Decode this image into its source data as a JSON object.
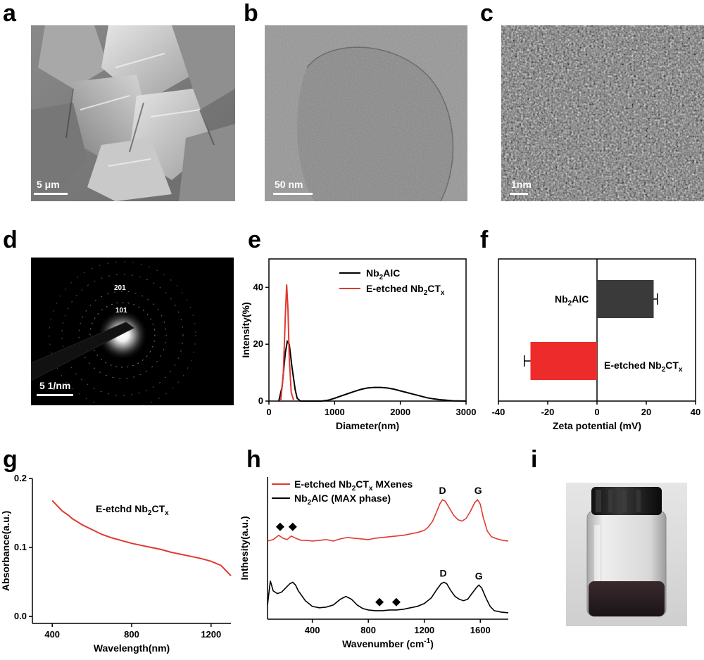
{
  "panels": {
    "a": {
      "letter": "a",
      "scale": "5 μm"
    },
    "b": {
      "letter": "b",
      "scale": "50 nm"
    },
    "c": {
      "letter": "c",
      "scale": "1nm"
    },
    "d": {
      "letter": "d",
      "scale": "5 1/nm",
      "rings": [
        "201",
        "101"
      ]
    },
    "e": {
      "letter": "e"
    },
    "f": {
      "letter": "f"
    },
    "g": {
      "letter": "g"
    },
    "h": {
      "letter": "h"
    },
    "i": {
      "letter": "i"
    }
  },
  "colors": {
    "black": "#000000",
    "red": "#e03a30",
    "bar_black": "#3a3a3a",
    "bar_red": "#ee2b2b"
  },
  "chart_data": [
    {
      "id": "e",
      "type": "line",
      "title": "",
      "xlabel": "Diameter(nm)",
      "ylabel": "Intensity(%)",
      "xlim": [
        0,
        3000
      ],
      "ylim": [
        0,
        50
      ],
      "xticks": [
        0,
        1000,
        2000,
        3000
      ],
      "yticks": [
        0,
        20,
        40
      ],
      "legend": "top-right",
      "series": [
        {
          "name_parts": [
            "Nb",
            "2",
            "AlC"
          ],
          "color": "#000000",
          "x": [
            150,
            200,
            250,
            280,
            310,
            350,
            400,
            430,
            480,
            800,
            900,
            1000,
            1100,
            1200,
            1300,
            1400,
            1500,
            1600,
            1700,
            1800,
            1900,
            2000,
            2100,
            2200,
            2300,
            2400,
            2500,
            2600,
            2700,
            2800,
            3000
          ],
          "y": [
            0,
            5,
            17,
            21,
            20,
            12,
            4,
            1,
            0,
            0,
            0.3,
            1,
            1.8,
            2.6,
            3.4,
            4.1,
            4.6,
            4.8,
            4.8,
            4.6,
            4.2,
            3.6,
            3.0,
            2.4,
            1.8,
            1.2,
            0.8,
            0.5,
            0.3,
            0.1,
            0
          ]
        },
        {
          "name_parts": [
            "E-etched Nb",
            "2",
            "CT",
            "x"
          ],
          "color": "#e03a30",
          "x": [
            180,
            220,
            250,
            270,
            290,
            310,
            340,
            380
          ],
          "y": [
            0,
            10,
            30,
            41,
            32,
            15,
            3,
            0
          ]
        }
      ]
    },
    {
      "id": "f",
      "type": "bar",
      "title": "",
      "xlabel": "Zeta potential (mV)",
      "ylabel": "",
      "xlim": [
        -40,
        40
      ],
      "xticks": [
        -40,
        -20,
        0,
        20,
        40
      ],
      "orientation": "horizontal",
      "categories": [
        [
          "Nb",
          "2",
          "AlC"
        ],
        [
          "E-etched Nb",
          "2",
          "CT",
          "x"
        ]
      ],
      "values": [
        23,
        -27
      ],
      "errors": [
        1.5,
        2.5
      ],
      "bar_colors": [
        "#3a3a3a",
        "#ee2b2b"
      ]
    },
    {
      "id": "g",
      "type": "line",
      "title": "",
      "xlabel": "Wavelength(nm)",
      "ylabel": "Absorbance(a.u.)",
      "xlim": [
        300,
        1300
      ],
      "ylim": [
        -0.01,
        0.2
      ],
      "xticks": [
        400,
        800,
        1200
      ],
      "yticks": [
        0.0,
        0.1,
        0.2
      ],
      "ytick_labels": [
        "0.0",
        "0.1",
        "0.2"
      ],
      "annotation_parts": [
        "E-etchd Nb",
        "2",
        "CT",
        "x"
      ],
      "series": [
        {
          "name": "",
          "color": "#e03a30",
          "x": [
            400,
            450,
            480,
            500,
            550,
            600,
            650,
            700,
            750,
            800,
            850,
            900,
            950,
            1000,
            1050,
            1100,
            1150,
            1200,
            1250,
            1300
          ],
          "y": [
            0.168,
            0.153,
            0.147,
            0.142,
            0.133,
            0.126,
            0.119,
            0.114,
            0.11,
            0.106,
            0.103,
            0.1,
            0.097,
            0.093,
            0.09,
            0.087,
            0.084,
            0.08,
            0.074,
            0.059
          ]
        }
      ]
    },
    {
      "id": "h",
      "type": "line",
      "title": "",
      "xlabel": "Wavenumber (cm",
      "xlabel_sup": "-1",
      "xlabel_end": ")",
      "ylabel": "Inthesity(a.u.)",
      "xlim": [
        80,
        1800
      ],
      "ylim": [
        0,
        1
      ],
      "xticks": [
        400,
        800,
        1200,
        1600
      ],
      "legend": "top-left",
      "peak_labels": {
        "D": "D",
        "G": "G"
      },
      "red_markers_x": [
        170,
        260
      ],
      "black_markers_x": [
        880,
        1000
      ],
      "series": [
        {
          "name_parts": [
            "E-etched Nb",
            "2",
            "CT",
            "x",
            "  MXenes"
          ],
          "color": "#e03a30",
          "x": [
            80,
            120,
            160,
            190,
            220,
            250,
            280,
            320,
            360,
            400,
            450,
            500,
            550,
            600,
            650,
            700,
            750,
            800,
            850,
            900,
            950,
            1000,
            1050,
            1100,
            1150,
            1200,
            1230,
            1260,
            1290,
            1310,
            1330,
            1350,
            1380,
            1410,
            1440,
            1470,
            1500,
            1530,
            1560,
            1580,
            1600,
            1620,
            1650,
            1680,
            1720,
            1760,
            1800
          ],
          "y": [
            0.55,
            0.56,
            0.59,
            0.57,
            0.56,
            0.585,
            0.57,
            0.555,
            0.555,
            0.55,
            0.555,
            0.56,
            0.55,
            0.565,
            0.575,
            0.57,
            0.565,
            0.56,
            0.57,
            0.575,
            0.58,
            0.585,
            0.59,
            0.6,
            0.61,
            0.625,
            0.65,
            0.69,
            0.76,
            0.81,
            0.84,
            0.83,
            0.78,
            0.73,
            0.7,
            0.69,
            0.71,
            0.76,
            0.82,
            0.84,
            0.81,
            0.72,
            0.62,
            0.58,
            0.565,
            0.555,
            0.55
          ]
        },
        {
          "name_parts": [
            "Nb",
            "2",
            "AlC (MAX phase)"
          ],
          "color": "#000000",
          "x": [
            80,
            100,
            120,
            150,
            180,
            210,
            240,
            260,
            280,
            300,
            350,
            400,
            450,
            500,
            550,
            600,
            640,
            680,
            720,
            760,
            800,
            850,
            900,
            950,
            1000,
            1050,
            1100,
            1150,
            1200,
            1250,
            1290,
            1320,
            1340,
            1360,
            1390,
            1420,
            1450,
            1480,
            1510,
            1540,
            1570,
            1590,
            1610,
            1640,
            1670,
            1700,
            1750,
            1800
          ],
          "y": [
            0.1,
            0.27,
            0.2,
            0.18,
            0.19,
            0.22,
            0.25,
            0.26,
            0.24,
            0.2,
            0.13,
            0.09,
            0.08,
            0.085,
            0.1,
            0.14,
            0.16,
            0.14,
            0.1,
            0.075,
            0.065,
            0.06,
            0.06,
            0.065,
            0.065,
            0.07,
            0.08,
            0.09,
            0.11,
            0.15,
            0.21,
            0.25,
            0.26,
            0.25,
            0.2,
            0.16,
            0.14,
            0.13,
            0.14,
            0.18,
            0.22,
            0.24,
            0.22,
            0.15,
            0.09,
            0.06,
            0.05,
            0.045
          ]
        }
      ]
    }
  ]
}
